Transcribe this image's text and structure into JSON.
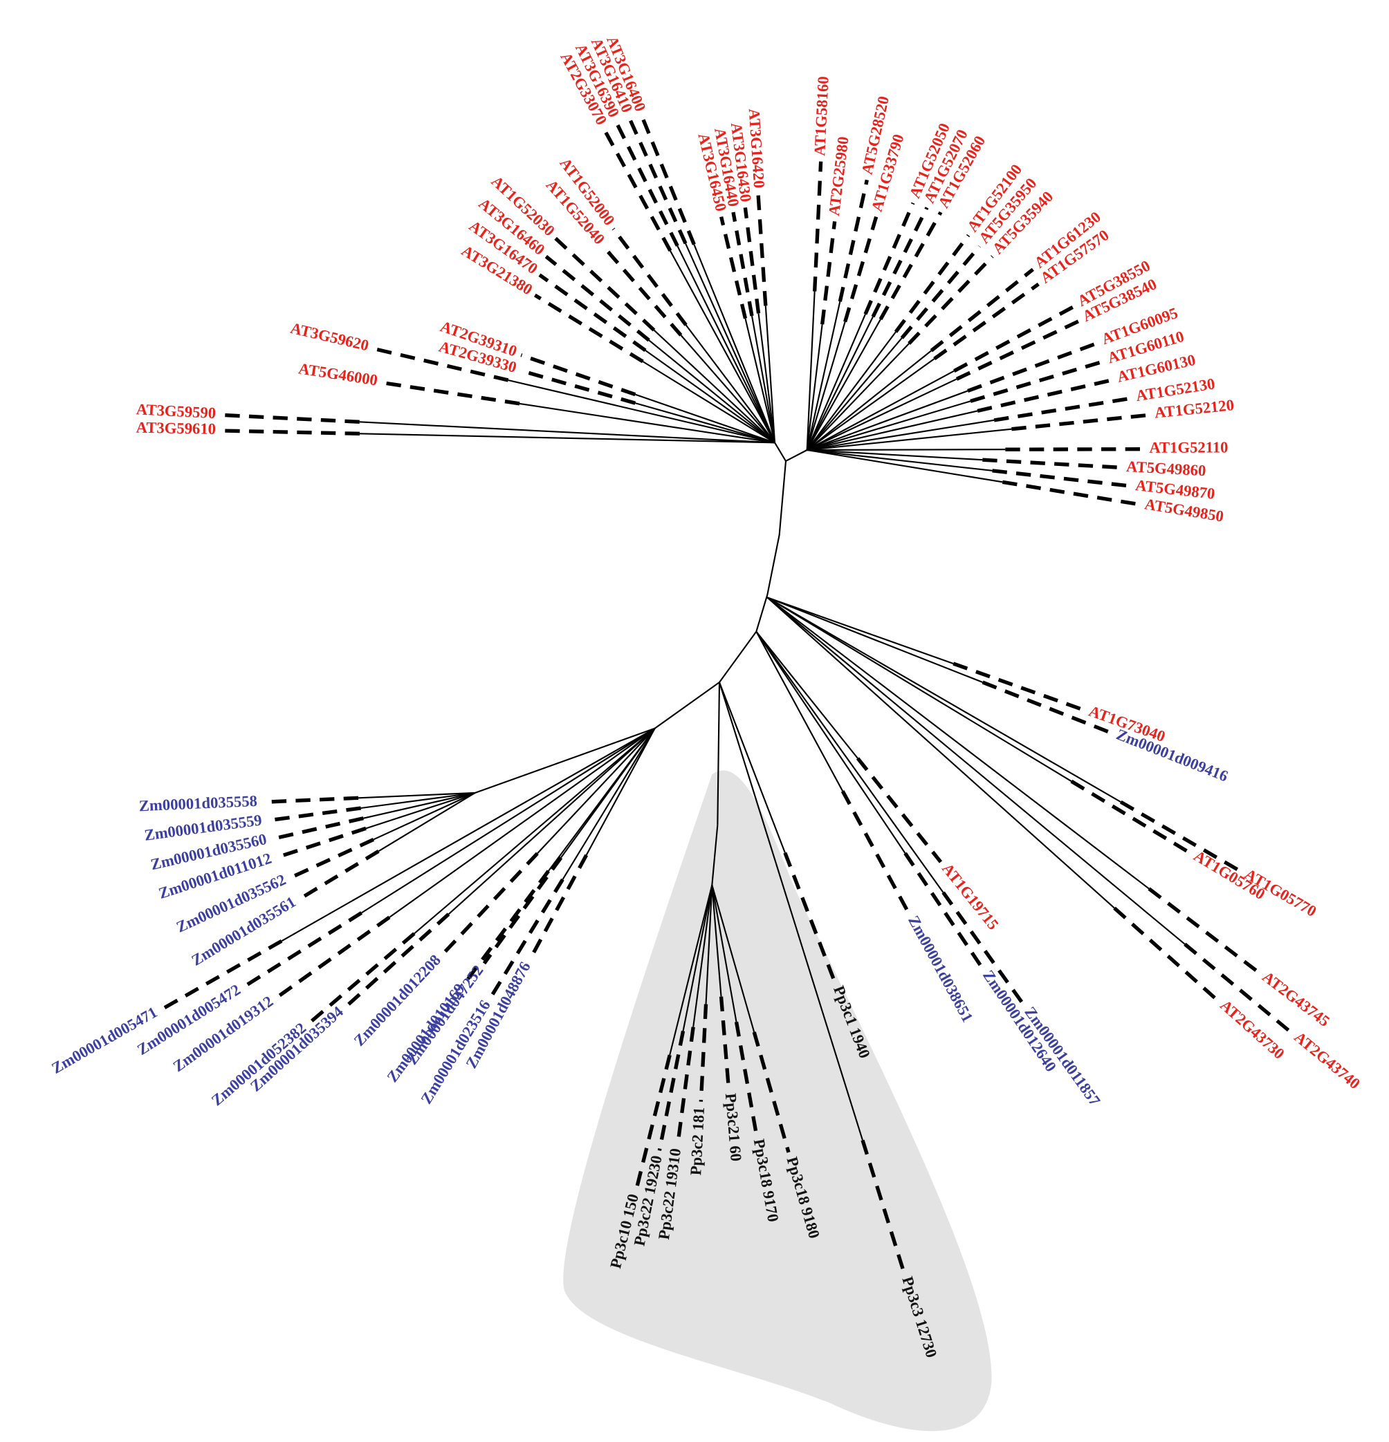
{
  "leaves": {
    "at": [
      "AT3G59590",
      "AT3G59610",
      "AT5G46000",
      "AT3G59620",
      "AT2G39310",
      "AT2G39330",
      "AT3G21380",
      "AT3G16470",
      "AT3G16460",
      "AT1G52030",
      "AT1G52040",
      "AT1G52000",
      "AT2G33070",
      "AT3G16390",
      "AT3G16410",
      "AT3G16400",
      "AT3G16450",
      "AT3G16440",
      "AT3G16430",
      "AT3G16420",
      "AT1G58160",
      "AT2G25980",
      "AT5G28520",
      "AT1G33790",
      "AT1G52050",
      "AT1G52070",
      "AT1G52060",
      "AT1G52100",
      "AT5G35950",
      "AT5G35940",
      "AT1G61230",
      "AT1G57570",
      "AT5G38550",
      "AT5G38540",
      "AT1G60095",
      "AT1G60110",
      "AT1G60130",
      "AT1G52130",
      "AT1G52120",
      "AT1G52110",
      "AT5G49860",
      "AT5G49870",
      "AT5G49850",
      "AT1G73040",
      "AT1G05770",
      "AT1G05760",
      "AT2G43745",
      "AT2G43740",
      "AT2G43730",
      "AT1G19715"
    ],
    "zm": [
      "Zm00001d009416",
      "Zm00001d038651",
      "Zm00001d012640",
      "Zm00001d011857",
      "Zm00001d035558",
      "Zm00001d035559",
      "Zm00001d035560",
      "Zm00001d011012",
      "Zm00001d035562",
      "Zm00001d035561",
      "Zm00001d005471",
      "Zm00001d005472",
      "Zm00001d019312",
      "Zm00001d052382",
      "Zm00001d035394",
      "Zm00001d012208",
      "Zm00001d010169",
      "Zm00001d047252",
      "Zm00001d023516",
      "Zm00001d048876"
    ],
    "pp": [
      "Pp3c1 1940",
      "Pp3c3 12730",
      "Pp3c18 9180",
      "Pp3c18 9170",
      "Pp3c21 60",
      "Pp3c2 181",
      "Pp3c22 19310",
      "Pp3c22 19230",
      "Pp3c10 150"
    ]
  }
}
